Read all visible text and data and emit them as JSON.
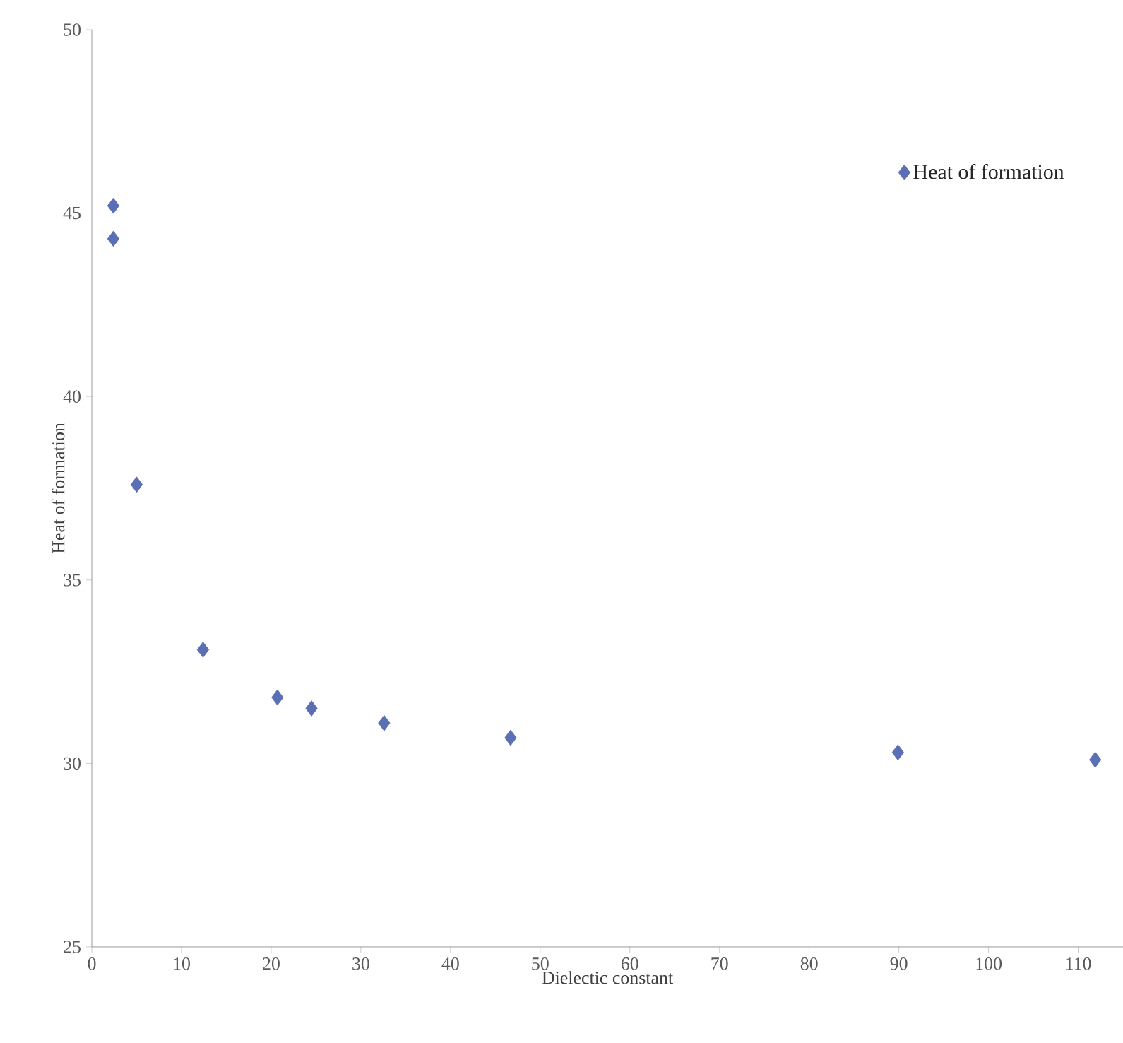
{
  "chart_data": {
    "type": "scatter",
    "xlabel": "Dielectic constant",
    "ylabel": "Heat of formation",
    "x": [
      2.4,
      2.4,
      5.0,
      12.4,
      20.7,
      24.5,
      32.6,
      46.7,
      89.9,
      111.9
    ],
    "series": [
      {
        "name": "Heat of formation",
        "color": "#5b6fb5",
        "values": [
          45.2,
          44.3,
          37.6,
          33.1,
          31.8,
          31.5,
          31.1,
          30.7,
          30.3,
          30.1
        ]
      }
    ],
    "xlim": [
      0,
      115
    ],
    "ylim": [
      25,
      50
    ],
    "xticks": [
      0,
      10,
      20,
      30,
      40,
      50,
      60,
      70,
      80,
      90,
      100,
      110
    ],
    "yticks": [
      25,
      30,
      35,
      40,
      45,
      50
    ],
    "marker": "diamond",
    "legend": "top right",
    "grid": false
  }
}
